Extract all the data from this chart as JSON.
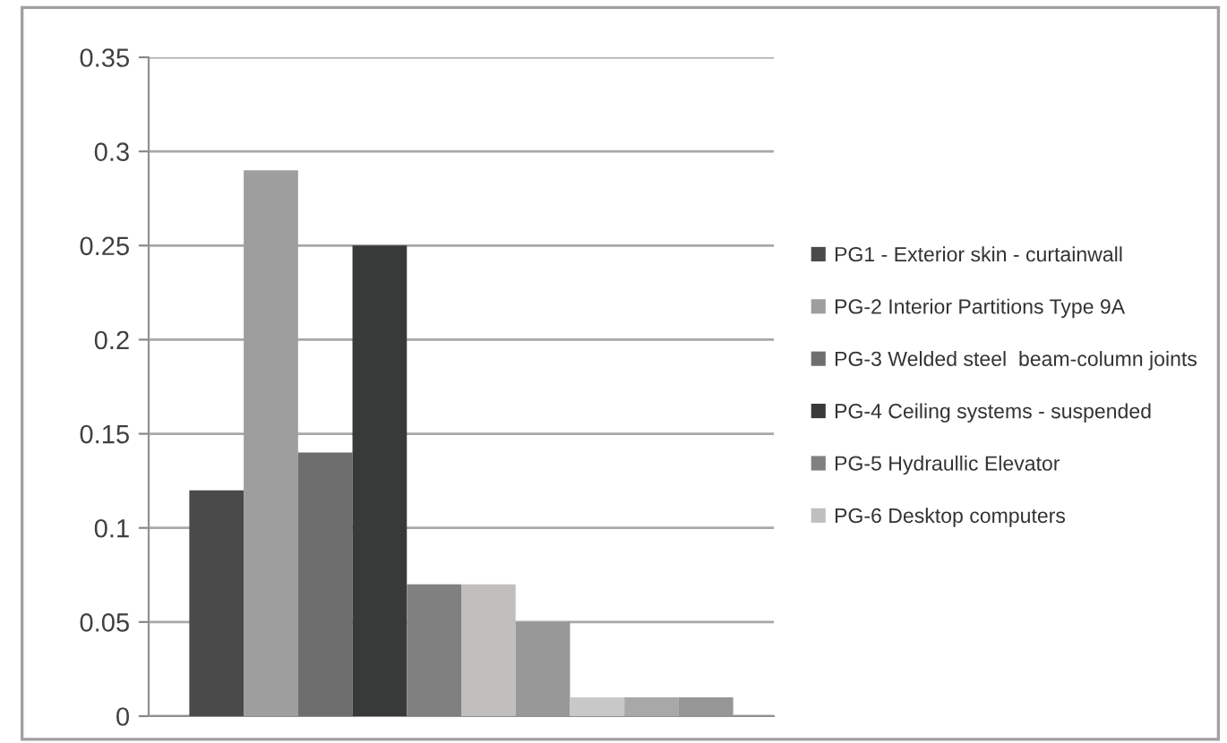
{
  "chart_data": {
    "type": "bar",
    "categories": [
      null
    ],
    "series": [
      {
        "name": "PG1 - Exterior skin - curtainwall",
        "color": "#4a4a4a",
        "values": [
          0.12
        ]
      },
      {
        "name": "PG-2 Interior Partitions Type 9A",
        "color": "#9e9e9e",
        "values": [
          0.29
        ]
      },
      {
        "name": "PG-3 Welded steel  beam-column joints",
        "color": "#6e6e6e",
        "values": [
          0.14
        ]
      },
      {
        "name": "PG-4 Ceiling systems - suspended",
        "color": "#383a39",
        "values": [
          0.25
        ]
      },
      {
        "name": "PG-5 Hydraullic Elevator",
        "color": "#808080",
        "values": [
          0.07
        ]
      },
      {
        "name": "PG-6 Desktop computers",
        "color": "#c0bfbd",
        "values": [
          0.07
        ]
      },
      {
        "color": "#989898",
        "values": [
          0.05
        ]
      },
      {
        "color": "#c8c8c8",
        "values": [
          0.01
        ]
      },
      {
        "color": "#a8a8a8",
        "values": [
          0.01
        ]
      },
      {
        "color": "#969696",
        "values": [
          0.01
        ]
      }
    ],
    "ylim": [
      0,
      0.35
    ],
    "yticks": [
      0,
      0.05,
      0.1,
      0.15,
      0.2,
      0.25,
      0.3,
      0.35
    ],
    "grid": "y",
    "legend": "right"
  }
}
